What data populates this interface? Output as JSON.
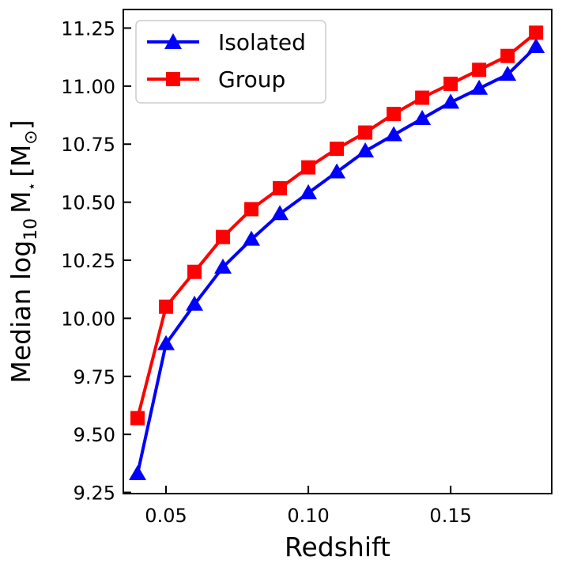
{
  "chart_data": {
    "type": "line",
    "title": "",
    "xlabel": "Redshift",
    "ylabel": "Median log",
    "ylabel_sub": "10",
    "ylabel_mass": "M",
    "ylabel_star": "⋆",
    "ylabel_unit_open": "[M",
    "ylabel_unit_sun": "⊙",
    "ylabel_unit_close": "]",
    "xlim": [
      0.035,
      0.1855
    ],
    "ylim": [
      9.245,
      11.33
    ],
    "x_ticks": [
      0.05,
      0.1,
      0.15
    ],
    "x_tick_labels": [
      "0.05",
      "0.10",
      "0.15"
    ],
    "y_ticks": [
      9.25,
      9.5,
      9.75,
      10.0,
      10.25,
      10.5,
      10.75,
      11.0,
      11.25
    ],
    "y_tick_labels": [
      "9.25",
      "9.50",
      "9.75",
      "10.00",
      "10.25",
      "10.50",
      "10.75",
      "11.00",
      "11.25"
    ],
    "grid": false,
    "legend_position": "top-left",
    "x": [
      0.04,
      0.05,
      0.06,
      0.07,
      0.08,
      0.09,
      0.1,
      0.11,
      0.12,
      0.13,
      0.14,
      0.15,
      0.16,
      0.17,
      0.18
    ],
    "series": [
      {
        "name": "Isolated",
        "color": "#0000ff",
        "marker": "triangle",
        "values": [
          9.33,
          9.89,
          10.06,
          10.22,
          10.34,
          10.45,
          10.54,
          10.63,
          10.72,
          10.79,
          10.86,
          10.93,
          10.99,
          11.05,
          11.17
        ]
      },
      {
        "name": "Group",
        "color": "#ff0000",
        "marker": "square",
        "values": [
          9.57,
          10.05,
          10.2,
          10.35,
          10.47,
          10.56,
          10.65,
          10.73,
          10.8,
          10.88,
          10.95,
          11.01,
          11.07,
          11.13,
          11.23
        ]
      }
    ]
  }
}
